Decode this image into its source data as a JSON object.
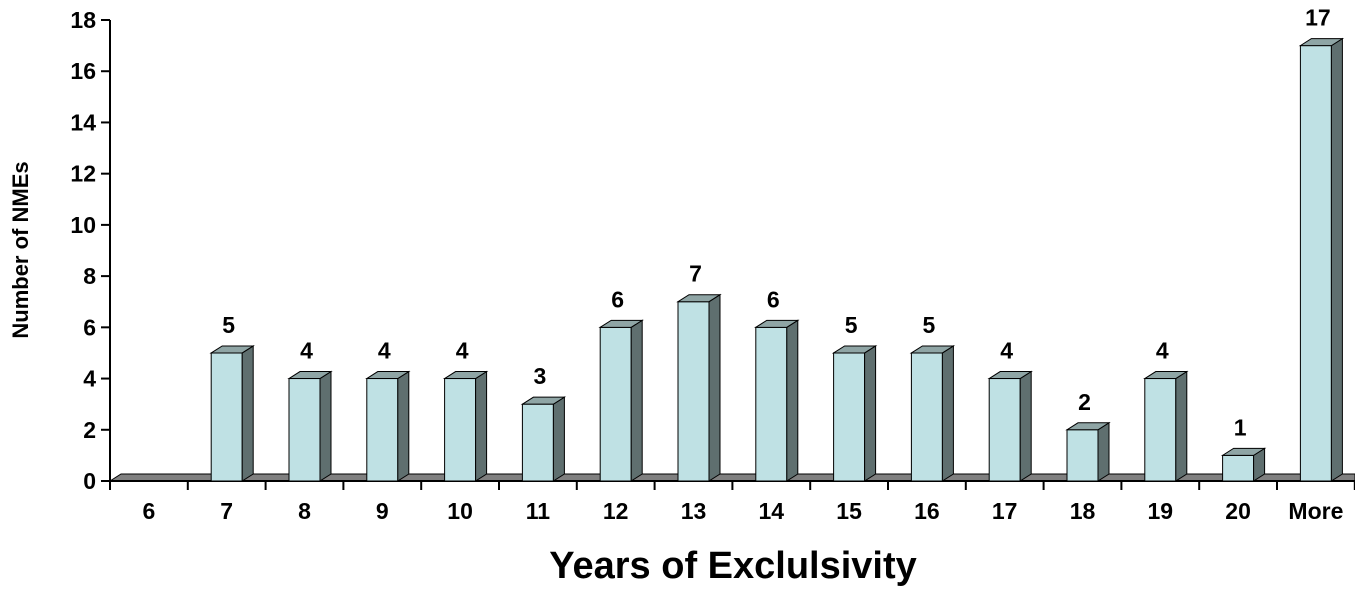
{
  "chart_data": {
    "type": "bar",
    "title": "",
    "xlabel": "Years of Exclulsivity",
    "ylabel": "Number of NMEs",
    "categories": [
      "6",
      "7",
      "8",
      "9",
      "10",
      "11",
      "12",
      "13",
      "14",
      "15",
      "16",
      "17",
      "18",
      "19",
      "20",
      "More"
    ],
    "values": [
      0,
      5,
      4,
      4,
      4,
      3,
      6,
      7,
      6,
      5,
      5,
      4,
      2,
      4,
      1,
      17
    ],
    "data_labels": [
      "",
      "5",
      "4",
      "4",
      "4",
      "3",
      "6",
      "7",
      "6",
      "5",
      "5",
      "4",
      "2",
      "4",
      "1",
      "17"
    ],
    "ylim": [
      0,
      18
    ],
    "yticks": [
      "0",
      "2",
      "4",
      "6",
      "8",
      "10",
      "12",
      "14",
      "16",
      "18"
    ],
    "grid": false,
    "legend": "none",
    "style": "3d-column",
    "colors": {
      "bar_front": "#bfe1e4",
      "bar_side": "#5f6f6f",
      "bar_top": "#8fa5a5",
      "floor": "#808080",
      "axis": "#000000"
    }
  }
}
